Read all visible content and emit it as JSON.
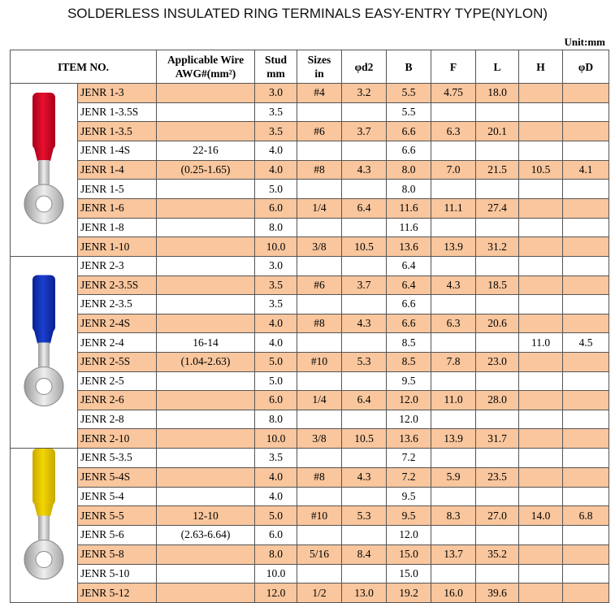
{
  "title": "SOLDERLESS INSULATED RING TERMINALS EASY-ENTRY TYPE(NYLON)",
  "unit": "Unit:mm",
  "header": [
    [
      "ITEM NO."
    ],
    [
      "Applicable Wire",
      "AWG#(mm²)"
    ],
    [
      "Stud",
      "mm"
    ],
    [
      "Sizes",
      "in"
    ],
    [
      "φd2"
    ],
    [
      "B"
    ],
    [
      "F"
    ],
    [
      "L"
    ],
    [
      "H"
    ],
    [
      "φD"
    ]
  ],
  "groups": [
    {
      "rows": [
        [
          "JENR 1-3",
          null,
          "3.0",
          "#4",
          "3.2",
          "5.5",
          "4.75",
          "18.0",
          null,
          null
        ],
        [
          "JENR 1-3.5S",
          null,
          "3.5",
          null,
          null,
          "5.5",
          null,
          null,
          null,
          null
        ],
        [
          "JENR 1-3.5",
          null,
          "3.5",
          "#6",
          "3.7",
          "6.6",
          "6.3",
          "20.1",
          null,
          null
        ],
        [
          "JENR 1-4S",
          "22-16",
          "4.0",
          null,
          null,
          "6.6",
          null,
          null,
          null,
          null
        ],
        [
          "JENR 1-4",
          "(0.25-1.65)",
          "4.0",
          "#8",
          "4.3",
          "8.0",
          "7.0",
          "21.5",
          "10.5",
          "4.1"
        ],
        [
          "JENR 1-5",
          null,
          "5.0",
          null,
          null,
          "8.0",
          null,
          null,
          null,
          null
        ],
        [
          "JENR 1-6",
          null,
          "6.0",
          "1/4",
          "6.4",
          "11.6",
          "11.1",
          "27.4",
          null,
          null
        ],
        [
          "JENR 1-8",
          null,
          "8.0",
          null,
          null,
          "11.6",
          null,
          null,
          null,
          null
        ],
        [
          "JENR 1-10",
          null,
          "10.0",
          "3/8",
          "10.5",
          "13.6",
          "13.9",
          "31.2",
          null,
          null
        ]
      ]
    },
    {
      "rows": [
        [
          "JENR 2-3",
          null,
          "3.0",
          null,
          null,
          "6.4",
          null,
          null,
          null,
          null
        ],
        [
          "JENR 2-3.5S",
          null,
          "3.5",
          "#6",
          "3.7",
          "6.4",
          "4.3",
          "18.5",
          null,
          null
        ],
        [
          "JENR 2-3.5",
          null,
          "3.5",
          null,
          null,
          "6.6",
          null,
          null,
          null,
          null
        ],
        [
          "JENR 2-4S",
          null,
          "4.0",
          "#8",
          "4.3",
          "6.6",
          "6.3",
          "20.6",
          null,
          null
        ],
        [
          "JENR 2-4",
          "16-14",
          "4.0",
          null,
          null,
          "8.5",
          null,
          null,
          "11.0",
          "4.5"
        ],
        [
          "JENR 2-5S",
          "(1.04-2.63)",
          "5.0",
          "#10",
          "5.3",
          "8.5",
          "7.8",
          "23.0",
          null,
          null
        ],
        [
          "JENR 2-5",
          null,
          "5.0",
          null,
          null,
          "9.5",
          null,
          null,
          null,
          null
        ],
        [
          "JENR 2-6",
          null,
          "6.0",
          "1/4",
          "6.4",
          "12.0",
          "11.0",
          "28.0",
          null,
          null
        ],
        [
          "JENR 2-8",
          null,
          "8.0",
          null,
          null,
          "12.0",
          null,
          null,
          null,
          null
        ],
        [
          "JENR 2-10",
          null,
          "10.0",
          "3/8",
          "10.5",
          "13.6",
          "13.9",
          "31.7",
          null,
          null
        ]
      ]
    },
    {
      "rows": [
        [
          "JENR 5-3.5",
          null,
          "3.5",
          null,
          null,
          "7.2",
          null,
          null,
          null,
          null
        ],
        [
          "JENR 5-4S",
          null,
          "4.0",
          "#8",
          "4.3",
          "7.2",
          "5.9",
          "23.5",
          null,
          null
        ],
        [
          "JENR 5-4",
          null,
          "4.0",
          null,
          null,
          "9.5",
          null,
          null,
          null,
          null
        ],
        [
          "JENR 5-5",
          "12-10",
          "5.0",
          "#10",
          "5.3",
          "9.5",
          "8.3",
          "27.0",
          "14.0",
          "6.8"
        ],
        [
          "JENR 5-6",
          "(2.63-6.64)",
          "6.0",
          null,
          null,
          "12.0",
          null,
          null,
          null,
          null
        ],
        [
          "JENR 5-8",
          null,
          "8.0",
          "5/16",
          "8.4",
          "15.0",
          "13.7",
          "35.2",
          null,
          null
        ],
        [
          "JENR 5-10",
          null,
          "10.0",
          null,
          null,
          "15.0",
          null,
          null,
          null,
          null
        ],
        [
          "JENR 5-12",
          null,
          "12.0",
          "1/2",
          "13.0",
          "19.2",
          "16.0",
          "39.6",
          null,
          null
        ]
      ]
    }
  ]
}
